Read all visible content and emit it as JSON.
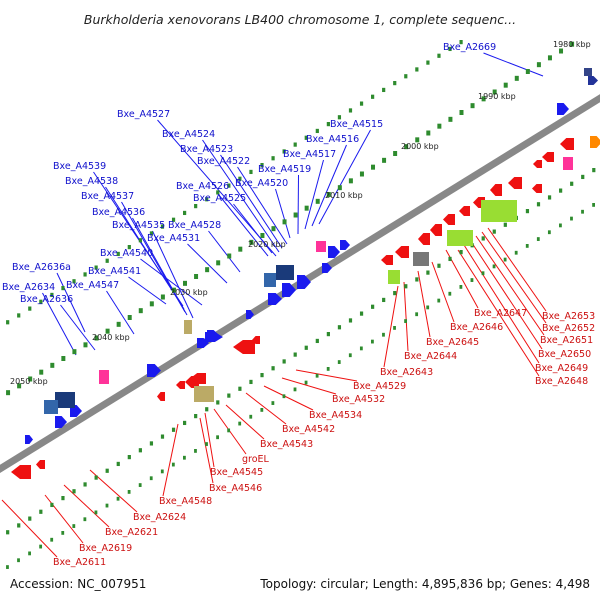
{
  "header": {
    "title": "Burkholderia xenovorans LB400 chromosome 1, complete sequenc..."
  },
  "footer": {
    "accession": "Accession: NC_007951",
    "summary": "Topology: circular; Length: 4,895,836 bp; Genes: 4,498"
  },
  "ticks": [
    "1980 kbp",
    "1990 kbp",
    "2000 kbp",
    "2010 kbp",
    "2020 kbp",
    "2030 kbp",
    "2040 kbp",
    "2050 kbp"
  ],
  "labels_blue": [
    "Bxe_A2669",
    "Bxe_A4515",
    "Bxe_A4516",
    "Bxe_A4517",
    "Bxe_A4519",
    "Bxe_A4520",
    "Bxe_A4522",
    "Bxe_A4523",
    "Bxe_A4524",
    "Bxe_A4527",
    "Bxe_A4539",
    "Bxe_A4538",
    "Bxe_A4537",
    "Bxe_A4536",
    "Bxe_A4535",
    "Bxe_A4526",
    "Bxe_A4525",
    "Bxe_A4528",
    "Bxe_A4531",
    "Bxe_A4540",
    "Bxe_A2636a",
    "Bxe_A4541",
    "Bxe_A2634",
    "Bxe_A4547",
    "Bxe_A2636"
  ],
  "labels_red": [
    "Bxe_A2653",
    "Bxe_A2652",
    "Bxe_A2651",
    "Bxe_A2650",
    "Bxe_A2649",
    "Bxe_A2648",
    "Bxe_A2647",
    "Bxe_A2646",
    "Bxe_A2645",
    "Bxe_A2644",
    "Bxe_A2643",
    "Bxe_A4529",
    "Bxe_A4532",
    "Bxe_A4534",
    "Bxe_A4542",
    "Bxe_A4543",
    "groEL",
    "Bxe_A4545",
    "Bxe_A4546",
    "Bxe_A4548",
    "Bxe_A2624",
    "Bxe_A2621",
    "Bxe_A2619",
    "Bxe_A2611"
  ],
  "colors": {
    "forward": "#1a1aee",
    "reverse": "#ee1111",
    "backbone": "#888888",
    "tick_mark": "#2e8b2e",
    "pseudo": "#ff3399",
    "rna": "#99dd33",
    "hypothetical": "#3366aa",
    "misc": "#bbaa66",
    "gray": "#777777"
  }
}
